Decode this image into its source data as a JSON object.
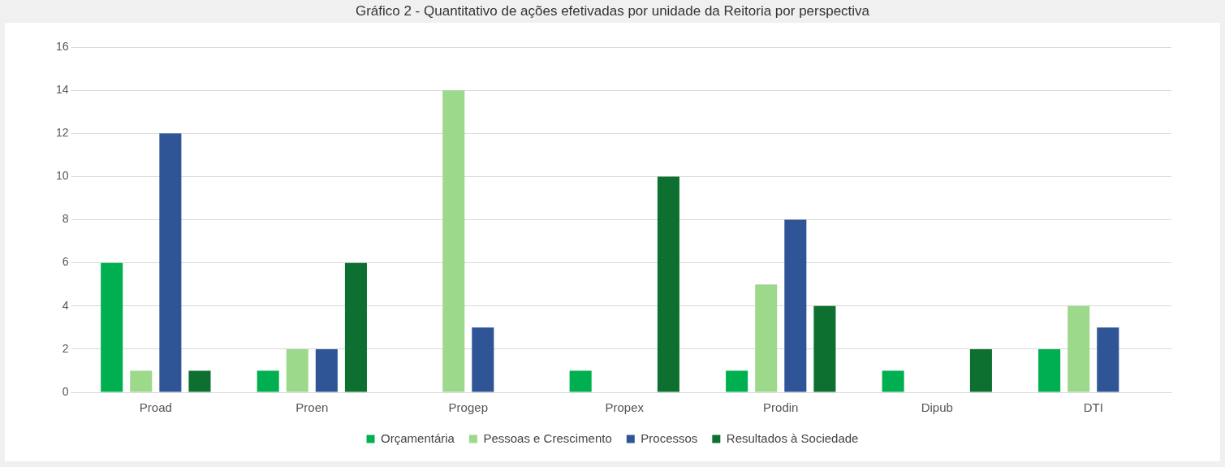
{
  "chart_data": {
    "type": "bar",
    "title": "Gráfico 2 - Quantitativo de ações efetivadas por unidade da Reitoria por perspectiva",
    "categories": [
      "Proad",
      "Proen",
      "Progep",
      "Propex",
      "Prodin",
      "Dipub",
      "DTI"
    ],
    "series": [
      {
        "name": "Orçamentária",
        "color": "#00b050",
        "values": [
          6,
          1,
          0,
          1,
          1,
          1,
          2
        ]
      },
      {
        "name": "Pessoas e Crescimento",
        "color": "#9dd98a",
        "values": [
          1,
          2,
          14,
          0,
          5,
          0,
          4
        ]
      },
      {
        "name": "Processos",
        "color": "#2f5597",
        "values": [
          12,
          2,
          3,
          0,
          8,
          0,
          3
        ]
      },
      {
        "name": "Resultados à Sociedade",
        "color": "#0e7030",
        "values": [
          1,
          6,
          0,
          10,
          4,
          2,
          0
        ]
      }
    ],
    "ylim": [
      0,
      16
    ],
    "yticks": [
      0,
      2,
      4,
      6,
      8,
      10,
      12,
      14,
      16
    ],
    "grid": "y",
    "legend": "bottom"
  }
}
